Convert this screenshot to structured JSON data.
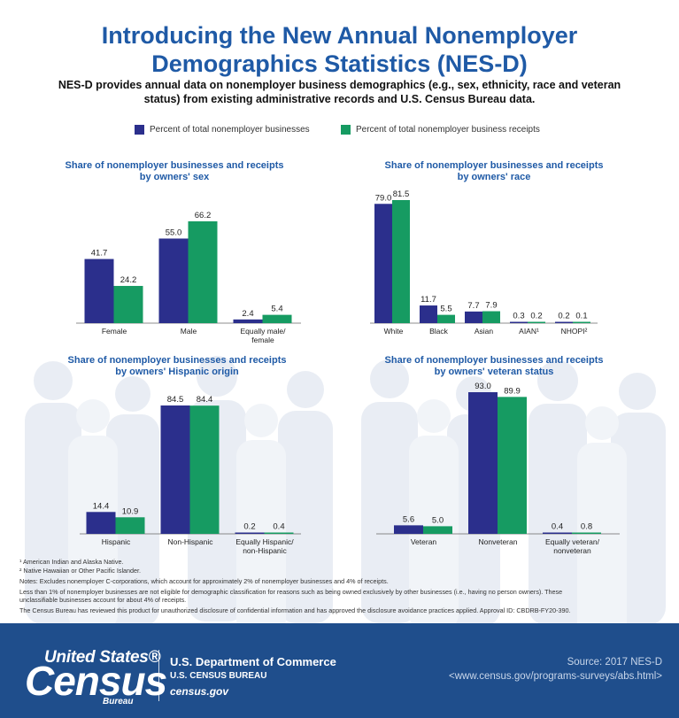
{
  "header": {
    "title_line1": "Introducing the New Annual Nonemployer",
    "title_line2": "Demographics Statistics (NES-D)",
    "subtitle_line1": "NES-D provides annual data on nonemployer business demographics (e.g., sex, ethnicity, race and veteran",
    "subtitle_line2": "status) from existing administrative records and U.S. Census Bureau data."
  },
  "legend": {
    "businesses": "Percent of total nonemployer businesses",
    "receipts": "Percent of total nonemployer business receipts"
  },
  "colors": {
    "businesses": "#2b2f8c",
    "receipts": "#169b62",
    "title": "#1f5aa6",
    "footer_bg": "#1f4e8c"
  },
  "chart_data": [
    {
      "type": "bar",
      "title_line1": "Share of nonemployer businesses and receipts",
      "title_line2": "by owners' sex",
      "categories": [
        [
          "Female"
        ],
        [
          "Male"
        ],
        [
          "Equally male/",
          "female"
        ]
      ],
      "series": [
        {
          "name": "Percent of total nonemployer businesses",
          "values": [
            41.7,
            55.0,
            2.4
          ]
        },
        {
          "name": "Percent of total nonemployer business receipts",
          "values": [
            24.2,
            66.2,
            5.4
          ]
        }
      ],
      "value_labels": [
        [
          "41.7",
          "55.0",
          "2.4"
        ],
        [
          "24.2",
          "66.2",
          "5.4"
        ]
      ]
    },
    {
      "type": "bar",
      "title_line1": "Share of nonemployer businesses and receipts",
      "title_line2": "by owners' race",
      "categories": [
        [
          "White"
        ],
        [
          "Black"
        ],
        [
          "Asian"
        ],
        [
          "AIAN¹"
        ],
        [
          "NHOPI²"
        ]
      ],
      "series": [
        {
          "name": "Percent of total nonemployer businesses",
          "values": [
            79.0,
            11.7,
            7.7,
            0.3,
            0.2
          ]
        },
        {
          "name": "Percent of total nonemployer business receipts",
          "values": [
            81.5,
            5.5,
            7.9,
            0.2,
            0.1
          ]
        }
      ],
      "value_labels": [
        [
          "79.0",
          "11.7",
          "7.7",
          "0.3",
          "0.2"
        ],
        [
          "81.5",
          "5.5",
          "7.9",
          "0.2",
          "0.1"
        ]
      ]
    },
    {
      "type": "bar",
      "title_line1": "Share of nonemployer businesses and receipts",
      "title_line2": "by owners' Hispanic origin",
      "categories": [
        [
          "Hispanic"
        ],
        [
          "Non-Hispanic"
        ],
        [
          "Equally Hispanic/",
          "non-Hispanic"
        ]
      ],
      "series": [
        {
          "name": "Percent of total nonemployer businesses",
          "values": [
            14.4,
            84.5,
            0.2
          ]
        },
        {
          "name": "Percent of total nonemployer business receipts",
          "values": [
            10.9,
            84.4,
            0.4
          ]
        }
      ],
      "value_labels": [
        [
          "14.4",
          "84.5",
          "0.2"
        ],
        [
          "10.9",
          "84.4",
          "0.4"
        ]
      ]
    },
    {
      "type": "bar",
      "title_line1": "Share of nonemployer businesses and receipts",
      "title_line2": "by owners' veteran status",
      "categories": [
        [
          "Veteran"
        ],
        [
          "Nonveteran"
        ],
        [
          "Equally veteran/",
          "nonveteran"
        ]
      ],
      "series": [
        {
          "name": "Percent of total nonemployer businesses",
          "values": [
            5.6,
            93.0,
            0.4
          ]
        },
        {
          "name": "Percent of total nonemployer business receipts",
          "values": [
            5.0,
            89.9,
            0.8
          ]
        }
      ],
      "value_labels": [
        [
          "5.6",
          "93.0",
          "0.4"
        ],
        [
          "5.0",
          "89.9",
          "0.8"
        ]
      ]
    }
  ],
  "notes": {
    "n1": "¹ American Indian and Alaska Native.",
    "n2": "² Native Hawaiian or Other Pacific Islander.",
    "n3": "Notes: Excludes nonemployer C-corporations, which account for approximately 2% of nonemployer businesses and 4% of receipts.",
    "n4a": "Less than 1% of nonemployer businesses are not eligible for demographic classification for reasons such as being owned exclusively by other businesses (i.e., having no person owners). These",
    "n4b": "unclassifiable businesses account for about 4% of receipts.",
    "n5": "The Census Bureau has reviewed this product for unauthorized disclosure of confidential information and has approved the disclosure avoidance practices applied. Approval ID: CBDRB-FY20-390."
  },
  "footer": {
    "logo_top": "United States®",
    "logo_main": "Census",
    "logo_bureau": "Bureau",
    "department": "U.S. Department of Commerce",
    "bureau": "U.S. CENSUS BUREAU",
    "site": "census.gov",
    "source": "Source: 2017 NES-D",
    "source_url": "<www.census.gov/programs-surveys/abs.html>"
  }
}
